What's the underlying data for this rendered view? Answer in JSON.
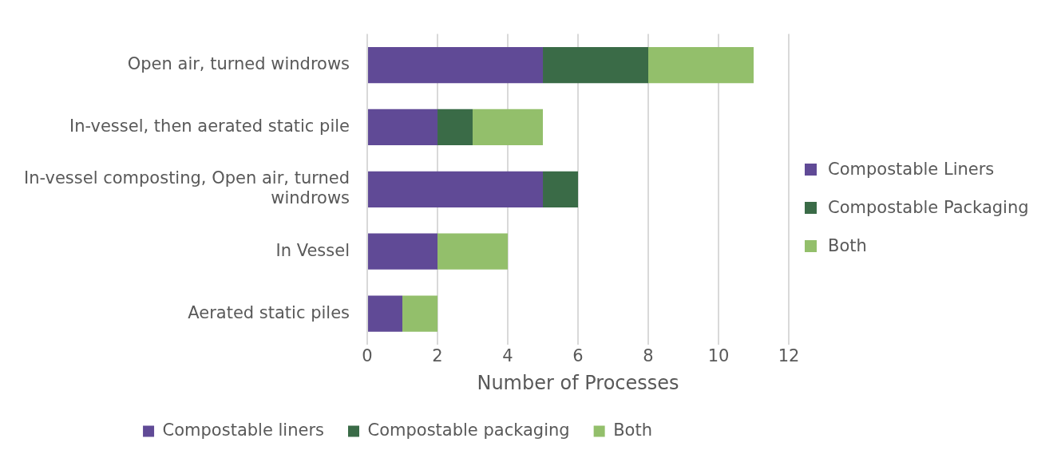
{
  "chart_data": {
    "type": "bar",
    "orientation": "horizontal",
    "stacked": true,
    "xlabel": "Number of Processes",
    "categories": [
      "Open air, turned windrows",
      "In-vessel, then aerated static pile",
      "In-vessel composting, Open air, turned windrows",
      "In Vessel",
      "Aerated static piles"
    ],
    "series": [
      {
        "name": "Compostable liners",
        "color": "#604a96",
        "values": [
          5,
          2,
          5,
          2,
          1
        ]
      },
      {
        "name": "Compostable packaging",
        "color": "#3a6b47",
        "values": [
          3,
          1,
          1,
          0,
          0
        ]
      },
      {
        "name": "Both",
        "color": "#93bf6b",
        "values": [
          3,
          2,
          0,
          2,
          1
        ]
      }
    ],
    "xlim": [
      0,
      12
    ],
    "xticks": [
      0,
      2,
      4,
      6,
      8,
      10,
      12
    ],
    "grid": "x",
    "legend": "bottom",
    "annotations": [
      "Compostable Liners",
      "Compostable Packaging",
      "Both"
    ]
  }
}
